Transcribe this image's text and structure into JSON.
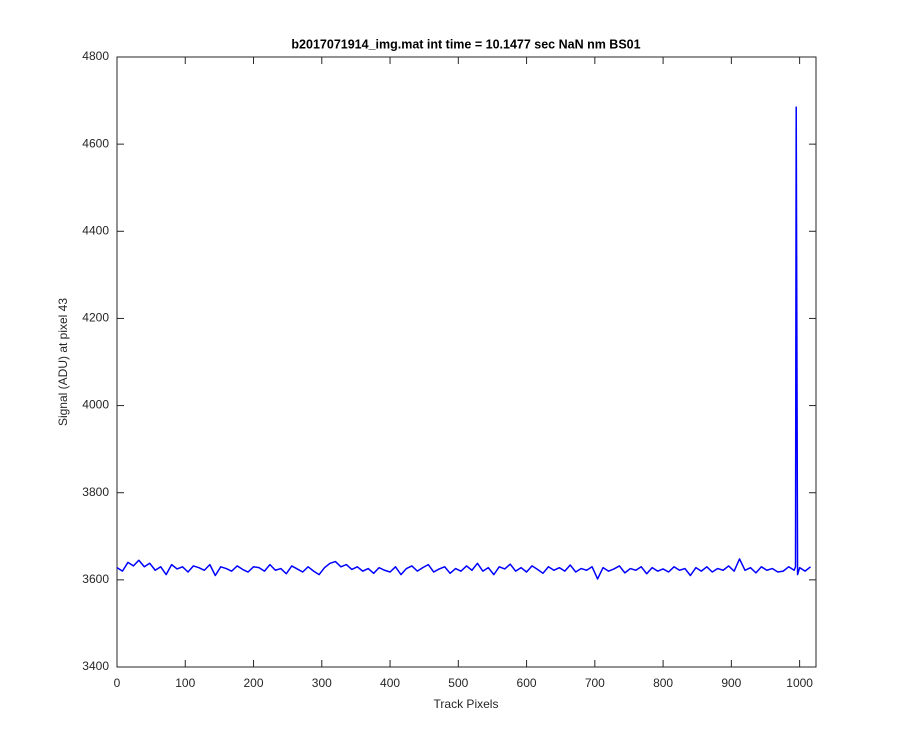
{
  "chart_data": {
    "type": "line",
    "title": "b2017071914_img.mat int time = 10.1477 sec  NaN nm BS01",
    "x_label": "Track Pixels",
    "y_label": "Signal (ADU) at pixel 43",
    "xlim": [
      0,
      1024
    ],
    "ylim": [
      3400,
      4800
    ],
    "xticks": [
      0,
      100,
      200,
      300,
      400,
      500,
      600,
      700,
      800,
      900,
      1000
    ],
    "yticks": [
      3400,
      3600,
      3800,
      4000,
      4200,
      4400,
      4600,
      4800
    ],
    "grid": false,
    "x": [
      0,
      8,
      16,
      24,
      32,
      40,
      48,
      56,
      64,
      72,
      80,
      88,
      96,
      104,
      112,
      120,
      128,
      136,
      144,
      152,
      160,
      168,
      176,
      184,
      192,
      200,
      208,
      216,
      224,
      232,
      240,
      248,
      256,
      264,
      272,
      280,
      288,
      296,
      304,
      312,
      320,
      328,
      336,
      344,
      352,
      360,
      368,
      376,
      384,
      392,
      400,
      408,
      416,
      424,
      432,
      440,
      448,
      456,
      464,
      472,
      480,
      488,
      496,
      504,
      512,
      520,
      528,
      536,
      544,
      552,
      560,
      568,
      576,
      584,
      592,
      600,
      608,
      616,
      624,
      632,
      640,
      648,
      656,
      664,
      672,
      680,
      688,
      696,
      704,
      712,
      720,
      728,
      736,
      744,
      752,
      760,
      768,
      776,
      784,
      792,
      800,
      808,
      816,
      824,
      832,
      840,
      848,
      856,
      864,
      872,
      880,
      888,
      896,
      904,
      912,
      920,
      928,
      936,
      944,
      952,
      960,
      968,
      976,
      984,
      992,
      994,
      995,
      997,
      1000,
      1008,
      1016
    ],
    "series": [
      {
        "color": "#0000ff",
        "values": [
          3628,
          3620,
          3640,
          3632,
          3645,
          3630,
          3638,
          3622,
          3630,
          3612,
          3635,
          3625,
          3630,
          3618,
          3632,
          3628,
          3622,
          3635,
          3610,
          3630,
          3626,
          3620,
          3632,
          3624,
          3618,
          3630,
          3628,
          3620,
          3635,
          3622,
          3626,
          3614,
          3632,
          3625,
          3618,
          3630,
          3620,
          3612,
          3628,
          3638,
          3642,
          3630,
          3635,
          3624,
          3630,
          3620,
          3626,
          3615,
          3628,
          3622,
          3618,
          3630,
          3612,
          3626,
          3632,
          3620,
          3628,
          3635,
          3618,
          3625,
          3630,
          3615,
          3626,
          3620,
          3632,
          3622,
          3638,
          3620,
          3628,
          3612,
          3630,
          3625,
          3636,
          3620,
          3628,
          3618,
          3632,
          3624,
          3615,
          3630,
          3622,
          3628,
          3620,
          3634,
          3618,
          3626,
          3622,
          3630,
          3602,
          3628,
          3620,
          3625,
          3632,
          3616,
          3626,
          3622,
          3630,
          3614,
          3628,
          3620,
          3625,
          3618,
          3630,
          3622,
          3626,
          3610,
          3628,
          3620,
          3630,
          3618,
          3626,
          3622,
          3632,
          3620,
          3648,
          3622,
          3628,
          3616,
          3630,
          3622,
          3626,
          3618,
          3620,
          3630,
          3622,
          3630,
          4685,
          3612,
          3628,
          3620,
          3630
        ]
      }
    ]
  }
}
